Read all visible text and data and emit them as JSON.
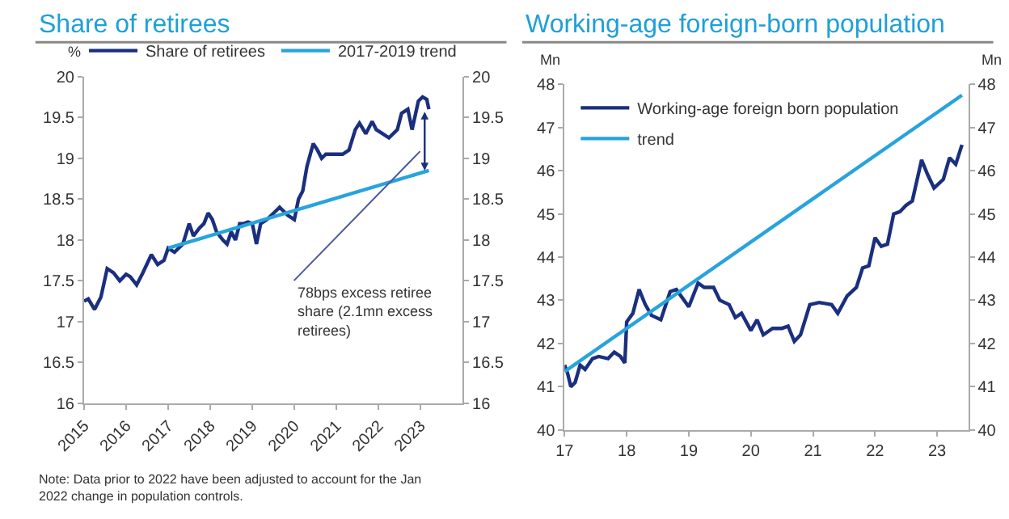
{
  "chart_data": [
    {
      "type": "line",
      "title": "Share of retirees",
      "ylabel": "%",
      "legend": "top",
      "annotations": [
        "78bps excess retiree share (2.1mn excess retirees)",
        "Note: Data prior to 2022 have been adjusted to account for the Jan 2022 change in population controls."
      ],
      "xlim": [
        2015,
        2024
      ],
      "xticks": [
        2015,
        2016,
        2017,
        2018,
        2019,
        2020,
        2021,
        2022,
        2023
      ],
      "ylim": [
        16,
        20
      ],
      "yticks": [
        16,
        16.5,
        17,
        17.5,
        18,
        18.5,
        19,
        19.5,
        20
      ],
      "y2lim": [
        16,
        20
      ],
      "y2ticks": [
        16,
        16.5,
        17,
        17.5,
        18,
        18.5,
        19,
        19.5,
        20
      ],
      "series": [
        {
          "name": "Share of retirees",
          "color": "#1a2f7f",
          "x": [
            2015.0,
            2015.1,
            2015.25,
            2015.4,
            2015.55,
            2015.7,
            2015.85,
            2016.0,
            2016.1,
            2016.25,
            2016.4,
            2016.6,
            2016.75,
            2016.9,
            2017.0,
            2017.15,
            2017.35,
            2017.5,
            2017.6,
            2017.75,
            2017.85,
            2017.95,
            2018.05,
            2018.15,
            2018.3,
            2018.4,
            2018.5,
            2018.6,
            2018.7,
            2018.8,
            2018.9,
            2019.0,
            2019.1,
            2019.2,
            2019.35,
            2019.45,
            2019.55,
            2019.65,
            2019.75,
            2019.85,
            2020.0,
            2020.1,
            2020.2,
            2020.3,
            2020.45,
            2020.55,
            2020.65,
            2020.75,
            2021.0,
            2021.15,
            2021.3,
            2021.45,
            2021.55,
            2021.7,
            2021.85,
            2021.95,
            2022.1,
            2022.25,
            2022.45,
            2022.55,
            2022.7,
            2022.8,
            2022.95,
            2023.05,
            2023.15,
            2023.2
          ],
          "values": [
            17.25,
            17.28,
            17.15,
            17.3,
            17.65,
            17.6,
            17.5,
            17.58,
            17.55,
            17.45,
            17.6,
            17.82,
            17.7,
            17.75,
            17.9,
            17.85,
            17.95,
            18.2,
            18.05,
            18.15,
            18.2,
            18.33,
            18.25,
            18.1,
            18.0,
            17.95,
            18.1,
            18.0,
            18.2,
            18.2,
            18.22,
            18.2,
            17.95,
            18.2,
            18.25,
            18.3,
            18.35,
            18.4,
            18.35,
            18.3,
            18.25,
            18.5,
            18.6,
            18.9,
            19.18,
            19.1,
            19.0,
            19.05,
            19.05,
            19.05,
            19.1,
            19.35,
            19.43,
            19.3,
            19.45,
            19.35,
            19.3,
            19.25,
            19.35,
            19.55,
            19.6,
            19.35,
            19.7,
            19.75,
            19.72,
            19.6
          ]
        },
        {
          "name": "2017-2019 trend",
          "color": "#27a3dd",
          "x": [
            2017.0,
            2023.2
          ],
          "values": [
            17.9,
            18.85
          ]
        }
      ]
    },
    {
      "type": "line",
      "title": "Working-age foreign-born population",
      "ylabel": "Mn",
      "y2label": "Mn",
      "legend": "top left",
      "xlim": [
        2017,
        2023.5
      ],
      "xticks": [
        {
          "value": 2017,
          "label": "17"
        },
        {
          "value": 2018,
          "label": "18"
        },
        {
          "value": 2019,
          "label": "19"
        },
        {
          "value": 2020,
          "label": "20"
        },
        {
          "value": 2021,
          "label": "21"
        },
        {
          "value": 2022,
          "label": "22"
        },
        {
          "value": 2023,
          "label": "23"
        }
      ],
      "ylim": [
        40,
        48
      ],
      "yticks": [
        40,
        41,
        42,
        43,
        44,
        45,
        46,
        47,
        48
      ],
      "y2lim": [
        40,
        48
      ],
      "y2ticks": [
        40,
        41,
        42,
        43,
        44,
        45,
        46,
        47,
        48
      ],
      "series": [
        {
          "name": "Working-age foreign born population",
          "color": "#1a2f7f",
          "x": [
            2017.0,
            2017.05,
            2017.1,
            2017.17,
            2017.25,
            2017.33,
            2017.45,
            2017.55,
            2017.7,
            2017.8,
            2017.9,
            2017.97,
            2018.0,
            2018.1,
            2018.2,
            2018.3,
            2018.4,
            2018.55,
            2018.7,
            2018.8,
            2019.0,
            2019.15,
            2019.25,
            2019.4,
            2019.5,
            2019.65,
            2019.75,
            2019.85,
            2020.0,
            2020.1,
            2020.2,
            2020.35,
            2020.5,
            2020.6,
            2020.7,
            2020.8,
            2020.95,
            2021.1,
            2021.3,
            2021.4,
            2021.55,
            2021.7,
            2021.8,
            2021.9,
            2022.0,
            2022.1,
            2022.2,
            2022.3,
            2022.4,
            2022.5,
            2022.6,
            2022.75,
            2022.85,
            2022.95,
            2023.1,
            2023.2,
            2023.3,
            2023.4
          ],
          "values": [
            41.5,
            41.3,
            41.0,
            41.1,
            41.5,
            41.4,
            41.65,
            41.7,
            41.65,
            41.8,
            41.7,
            41.55,
            42.5,
            42.7,
            43.25,
            42.9,
            42.65,
            42.55,
            43.2,
            43.25,
            42.85,
            43.4,
            43.3,
            43.3,
            43.0,
            42.9,
            42.6,
            42.7,
            42.3,
            42.55,
            42.2,
            42.35,
            42.35,
            42.4,
            42.05,
            42.2,
            42.9,
            42.95,
            42.9,
            42.7,
            43.1,
            43.3,
            43.75,
            43.8,
            44.45,
            44.25,
            44.3,
            45.0,
            45.05,
            45.2,
            45.3,
            46.25,
            45.9,
            45.6,
            45.8,
            46.3,
            46.15,
            46.6
          ]
        },
        {
          "name": "trend",
          "color": "#27a3dd",
          "x": [
            2017.0,
            2023.4
          ],
          "values": [
            41.35,
            47.75
          ]
        }
      ]
    }
  ]
}
